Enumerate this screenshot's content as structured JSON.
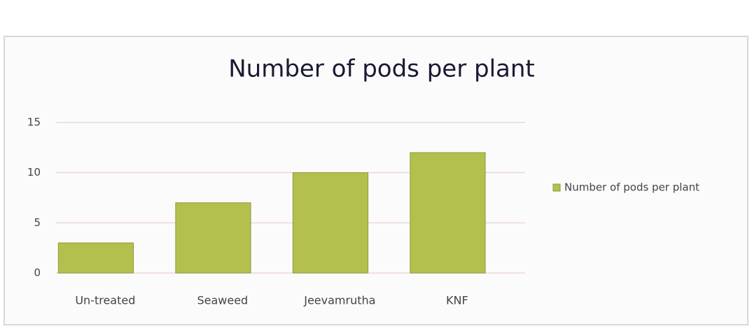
{
  "chart_data": {
    "type": "bar",
    "title": "Number of pods per plant",
    "categories": [
      "Un-treated",
      "Seaweed",
      "Jeevamrutha",
      "KNF"
    ],
    "series": [
      {
        "name": "Number of pods per plant",
        "color": "#b3c04e",
        "values": [
          3,
          7,
          10,
          12
        ]
      }
    ],
    "ylim": [
      0,
      15
    ],
    "yticks": [
      0,
      5,
      10,
      15
    ],
    "grid": true,
    "legend": "right"
  }
}
